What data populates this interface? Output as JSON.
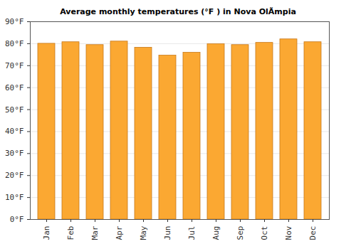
{
  "chart_data": {
    "type": "bar",
    "title": "Average monthly temperatures (°F ) in Nova OlÃ­mpia",
    "categories": [
      "Jan",
      "Feb",
      "Mar",
      "Apr",
      "May",
      "Jun",
      "Jul",
      "Aug",
      "Sep",
      "Oct",
      "Nov",
      "Dec"
    ],
    "values": [
      80,
      80.7,
      79.4,
      81,
      78.2,
      74.6,
      75.9,
      79.8,
      79.4,
      80.4,
      82,
      80.7
    ],
    "color": "#fba832",
    "ylim": [
      0,
      90
    ],
    "yticks": [
      {
        "value": 0,
        "label": "0°F"
      },
      {
        "value": 10,
        "label": "10°F"
      },
      {
        "value": 20,
        "label": "20°F"
      },
      {
        "value": 30,
        "label": "30°F"
      },
      {
        "value": 40,
        "label": "40°F"
      },
      {
        "value": 50,
        "label": "50°F"
      },
      {
        "value": 60,
        "label": "60°F"
      },
      {
        "value": 70,
        "label": "70°F"
      },
      {
        "value": 80,
        "label": "80°F"
      },
      {
        "value": 90,
        "label": "90°F"
      }
    ],
    "grid": true
  }
}
